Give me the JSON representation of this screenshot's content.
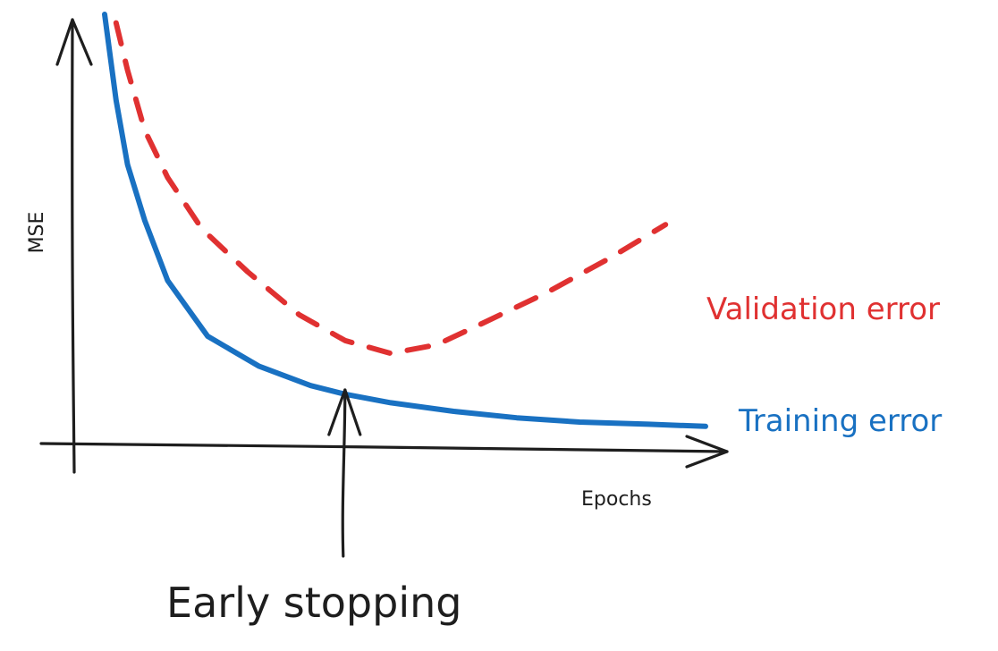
{
  "chart_data": {
    "type": "line",
    "xlabel": "Epochs",
    "ylabel": "MSE",
    "series": [
      {
        "name": "Validation error",
        "color": "#e03131",
        "dash": "dashed",
        "x": [
          0.7,
          0.9,
          1.2,
          1.6,
          2.2,
          3.0,
          3.9,
          4.7,
          5.5,
          6.3,
          7.1,
          8.2,
          9.3,
          10.3
        ],
        "y": [
          9.8,
          8.7,
          7.3,
          6.2,
          5.0,
          4.0,
          3.0,
          2.4,
          2.1,
          2.3,
          2.8,
          3.5,
          4.3,
          5.1
        ]
      },
      {
        "name": "Training error",
        "color": "#1971c2",
        "dash": "solid",
        "x": [
          0.5,
          0.7,
          0.9,
          1.2,
          1.6,
          2.3,
          3.2,
          4.1,
          4.7,
          5.5,
          6.6,
          7.7,
          8.8,
          10.0,
          11.0
        ],
        "y": [
          10.0,
          8.0,
          6.5,
          5.2,
          3.8,
          2.5,
          1.8,
          1.35,
          1.15,
          0.95,
          0.75,
          0.6,
          0.5,
          0.45,
          0.4
        ]
      }
    ],
    "annotations": [
      {
        "text": "Early stopping",
        "x": 4.7
      }
    ]
  }
}
